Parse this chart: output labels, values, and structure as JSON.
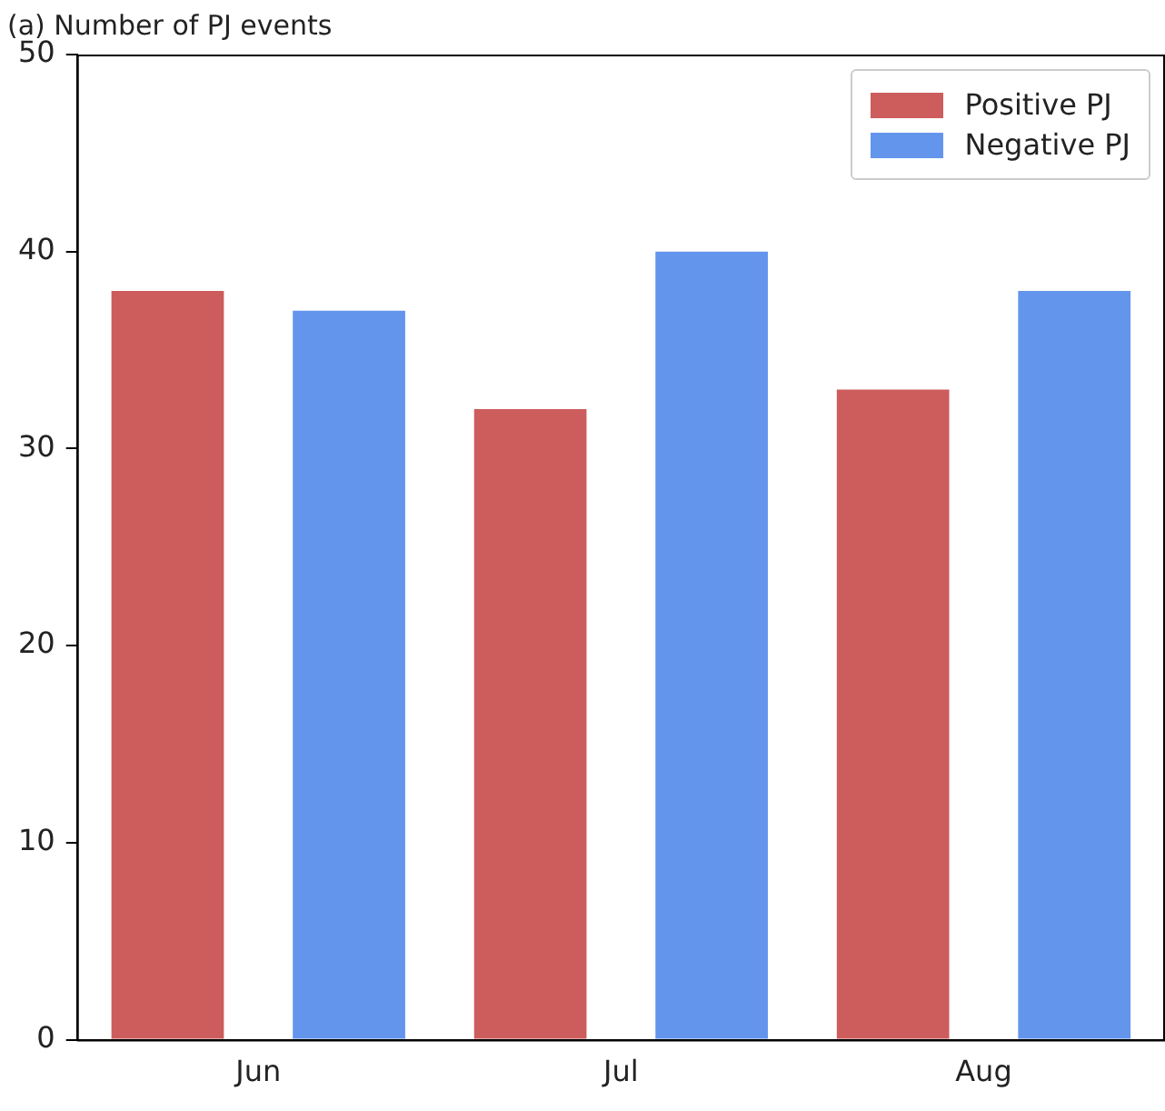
{
  "chart_data": {
    "type": "bar",
    "title": "(a) Number of PJ events",
    "categories": [
      "Jun",
      "Jul",
      "Aug"
    ],
    "series": [
      {
        "name": "Positive PJ",
        "color": "#cd5c5c",
        "values": [
          38,
          32,
          33
        ]
      },
      {
        "name": "Negative PJ",
        "color": "#6495ed",
        "values": [
          37,
          40,
          38
        ]
      }
    ],
    "ylim": [
      0,
      50
    ],
    "yticks": [
      0,
      10,
      20,
      30,
      40,
      50
    ],
    "grid": false,
    "legend": "top right"
  }
}
